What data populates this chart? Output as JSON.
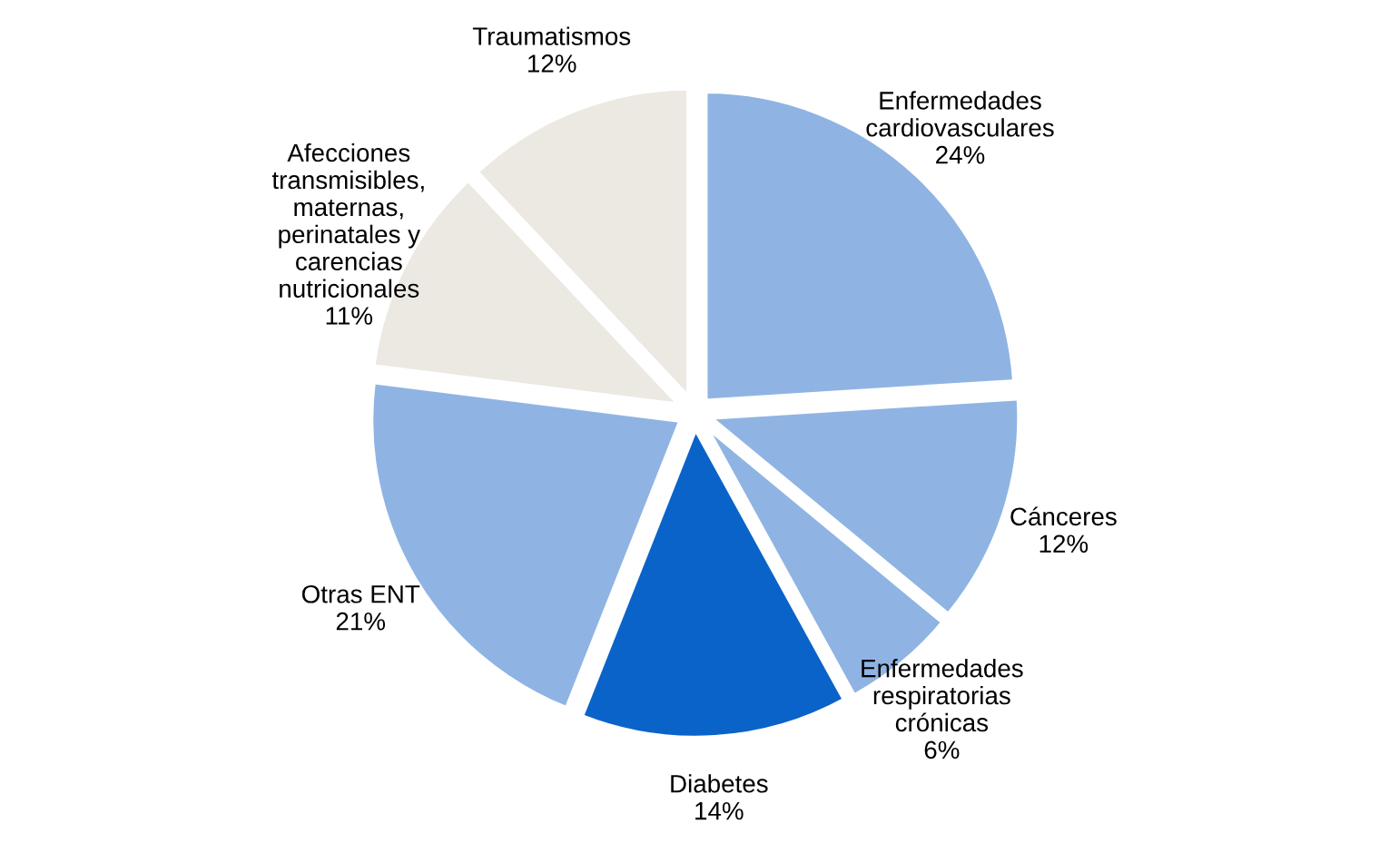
{
  "chart_data": {
    "type": "pie",
    "categories": [
      "Enfermedades\ncardiovasculares",
      "Cánceres",
      "Enfermedades\nrespiratorias\ncrónicas",
      "Diabetes",
      "Otras ENT",
      "Afecciones\ntransmisibles,\nmaternas,\nperinatales y\ncarencias\nnutricionales",
      "Traumatismos"
    ],
    "values": [
      24,
      12,
      6,
      14,
      21,
      11,
      12
    ],
    "value_labels": [
      "24%",
      "12%",
      "6%",
      "14%",
      "21%",
      "11%",
      "12%"
    ],
    "colors": [
      "#8fb4e3",
      "#8fb4e3",
      "#8fb4e3",
      "#0a63c9",
      "#8fb4e3",
      "#ece9e2",
      "#ece9e2"
    ]
  }
}
